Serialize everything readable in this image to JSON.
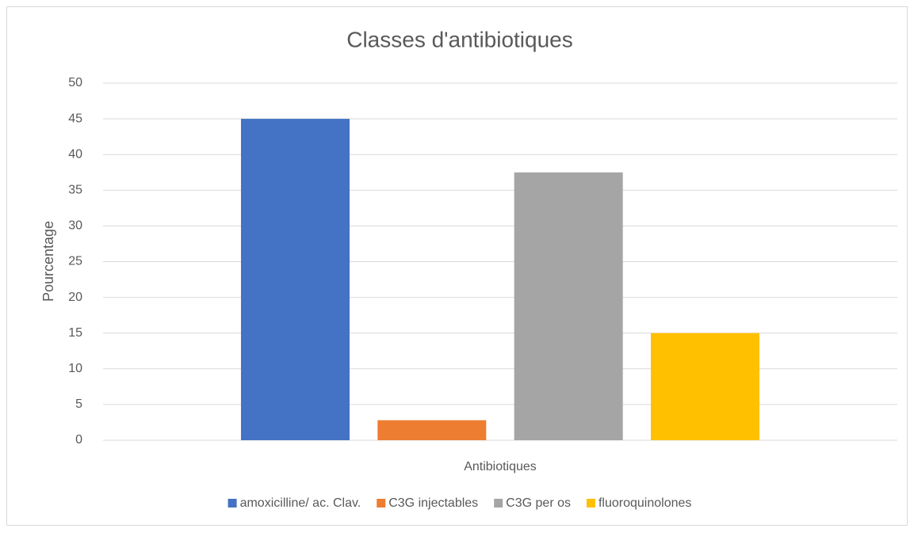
{
  "chart_data": {
    "type": "bar",
    "title": "Classes d'antibiotiques",
    "xlabel": "Antibiotiques",
    "ylabel": "Pourcentage",
    "categories": [
      null
    ],
    "series": [
      {
        "name": "amoxicilline/ ac. Clav.",
        "color": "#4472c4",
        "values": [
          45
        ]
      },
      {
        "name": "C3G injectables",
        "color": "#ed7d31",
        "values": [
          2.8
        ]
      },
      {
        "name": "C3G per os",
        "color": "#a5a5a5",
        "values": [
          37.5
        ]
      },
      {
        "name": "fluoroquinolones",
        "color": "#ffc000",
        "values": [
          15
        ]
      }
    ],
    "ylim": [
      0,
      50
    ],
    "yticks": [
      0,
      5,
      10,
      15,
      20,
      25,
      30,
      35,
      40,
      45,
      50
    ],
    "grid": true,
    "legend": "bottom"
  }
}
